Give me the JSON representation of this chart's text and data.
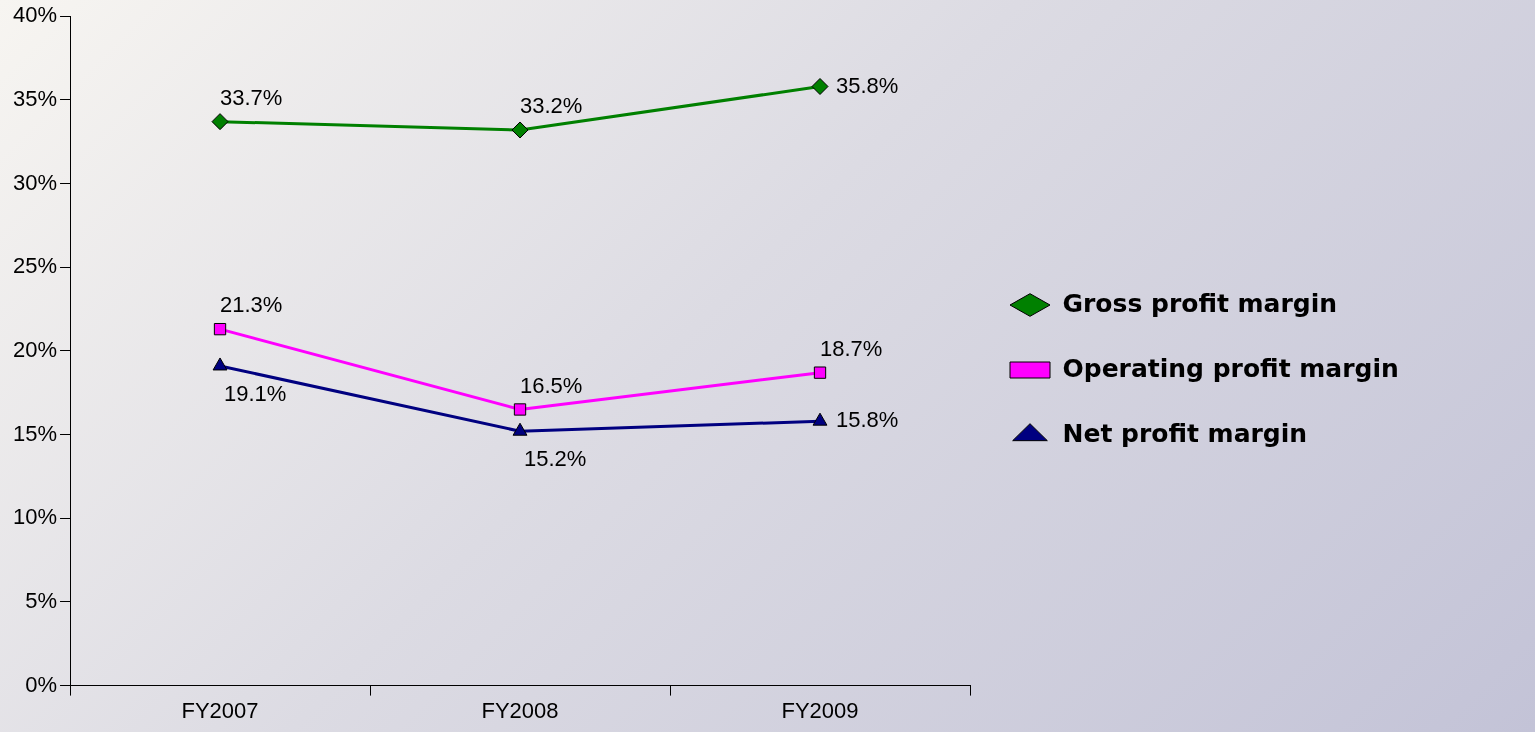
{
  "chart_data": {
    "type": "line",
    "categories": [
      "FY2007",
      "FY2008",
      "FY2009"
    ],
    "series": [
      {
        "name": "Gross profit margin",
        "color": "#008000",
        "marker": "diamond",
        "values": [
          33.7,
          33.2,
          35.8
        ],
        "value_labels": [
          "33.7%",
          "33.2%",
          "35.8%"
        ]
      },
      {
        "name": "Operating profit margin",
        "color": "#ff00ff",
        "marker": "square",
        "values": [
          21.3,
          16.5,
          18.7
        ],
        "value_labels": [
          "21.3%",
          "16.5%",
          "18.7%"
        ]
      },
      {
        "name": "Net profit margin",
        "color": "#000080",
        "marker": "triangle",
        "values": [
          19.1,
          15.2,
          15.8
        ],
        "value_labels": [
          "19.1%",
          "15.2%",
          "15.8%"
        ]
      }
    ],
    "ylim": [
      0,
      40
    ],
    "yticks": [
      {
        "value": 0,
        "label": "0%"
      },
      {
        "value": 5,
        "label": "5%"
      },
      {
        "value": 10,
        "label": "10%"
      },
      {
        "value": 15,
        "label": "15%"
      },
      {
        "value": 20,
        "label": "20%"
      },
      {
        "value": 25,
        "label": "25%"
      },
      {
        "value": 30,
        "label": "30%"
      },
      {
        "value": 35,
        "label": "35%"
      },
      {
        "value": 40,
        "label": "40%"
      }
    ],
    "grid": false,
    "legend": "right",
    "line_style": "solid"
  }
}
